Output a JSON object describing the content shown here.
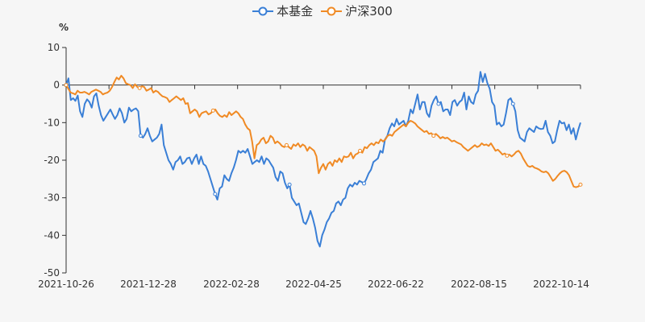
{
  "chart_data": {
    "type": "line",
    "ylabel": "%",
    "ylim": [
      -50,
      10
    ],
    "yticks": [
      10,
      0,
      -10,
      -20,
      -30,
      -40,
      -50
    ],
    "xticks": [
      "2021-10-26",
      "2021-12-28",
      "2022-02-28",
      "2022-04-25",
      "2022-06-22",
      "2022-08-15",
      "2022-10-14"
    ],
    "legend_position": "top-center",
    "grid": false,
    "series": [
      {
        "name": "本基金",
        "color": "#3a7fd6",
        "values": [
          0,
          1.8,
          -4,
          -3.5,
          -4.2,
          -2.8,
          -7,
          -8.5,
          -5,
          -3.8,
          -4.5,
          -6,
          -3,
          -2.2,
          -5.5,
          -8,
          -9.5,
          -8.5,
          -7.5,
          -6.5,
          -7.8,
          -9,
          -8,
          -6.2,
          -7.5,
          -10,
          -9,
          -6,
          -7,
          -6.5,
          -6.2,
          -7,
          -13.5,
          -14,
          -13,
          -11.5,
          -13.5,
          -15,
          -14.5,
          -14,
          -13,
          -10.5,
          -16,
          -18,
          -20,
          -21,
          -22.5,
          -20.5,
          -20,
          -19,
          -21,
          -20.5,
          -19.5,
          -19.3,
          -21,
          -19.5,
          -18.5,
          -21,
          -19,
          -21,
          -21.5,
          -23,
          -25,
          -27,
          -29,
          -30.5,
          -27.5,
          -27,
          -24,
          -25,
          -25.5,
          -23.5,
          -22,
          -20,
          -17.5,
          -18,
          -17.5,
          -18,
          -17,
          -19,
          -21,
          -20.5,
          -20,
          -20.5,
          -19,
          -21,
          -19.5,
          -20,
          -21,
          -22,
          -24.5,
          -25.5,
          -23,
          -23.5,
          -26,
          -27.5,
          -26.5,
          -30,
          -31,
          -32,
          -31.5,
          -34,
          -36.5,
          -37,
          -35.5,
          -33.5,
          -35.5,
          -38,
          -41.5,
          -43,
          -40,
          -38.5,
          -36.5,
          -35.5,
          -34,
          -33.5,
          -31.5,
          -31,
          -32,
          -30.5,
          -30,
          -27.5,
          -26.5,
          -27,
          -26,
          -26.5,
          -25.5,
          -25.8,
          -26.2,
          -25,
          -23.5,
          -22.5,
          -20.5,
          -20,
          -19.5,
          -17.5,
          -18,
          -14.5,
          -13.5,
          -11.5,
          -10.2,
          -11,
          -9,
          -10.5,
          -10,
          -9.5,
          -11,
          -9.5,
          -6.5,
          -7.5,
          -5,
          -2.5,
          -6.5,
          -4.5,
          -4.5,
          -7.5,
          -8.5,
          -5.5,
          -4,
          -3,
          -5,
          -4.5,
          -7,
          -6.5,
          -6.5,
          -8,
          -4.5,
          -4,
          -5.5,
          -4.5,
          -4,
          -2,
          -6.5,
          -3,
          -4.5,
          -5,
          -2.5,
          -1.5,
          3.5,
          0.8,
          3,
          0.5,
          -1,
          -4.5,
          -5.5,
          -10.5,
          -10,
          -11,
          -10.5,
          -7.5,
          -4,
          -3.5,
          -5,
          -7,
          -12,
          -14,
          -14.5,
          -15,
          -12.5,
          -11.5,
          -12,
          -12.5,
          -11,
          -11.5,
          -11.7,
          -11.6,
          -9.5,
          -12.5,
          -13.5,
          -15.5,
          -15,
          -12,
          -9.5,
          -10.2,
          -10,
          -12,
          -10.5,
          -13,
          -11.5,
          -14.5,
          -12,
          -10
        ]
      },
      {
        "name": "沪深300",
        "color": "#f08a24",
        "values": [
          0,
          -1,
          -2,
          -2.2,
          -2.5,
          -1.5,
          -2,
          -2,
          -1.8,
          -2.1,
          -2.5,
          -1.8,
          -1.5,
          -1.2,
          -1.5,
          -1.8,
          -2.5,
          -2.2,
          -2,
          -1.5,
          -0.5,
          0.8,
          2,
          1.5,
          2.5,
          1.8,
          0.5,
          0.2,
          0,
          -0.8,
          0.2,
          -0.5,
          -0.8,
          -0.3,
          -0.5,
          -1.5,
          -1.2,
          -0.8,
          -2,
          -1.5,
          -1.8,
          -2.5,
          -3,
          -3.2,
          -3.5,
          -4.5,
          -4,
          -3.5,
          -3,
          -3.5,
          -4,
          -3.5,
          -5,
          -4.8,
          -7.5,
          -7,
          -6.5,
          -7,
          -8.5,
          -7.5,
          -7.2,
          -7,
          -7.8,
          -7.5,
          -6.8,
          -6.5,
          -7.5,
          -8.2,
          -8.5,
          -8,
          -8.5,
          -7.2,
          -8,
          -7.5,
          -7,
          -7.5,
          -8.5,
          -9,
          -10.5,
          -11.5,
          -12,
          -15,
          -19.5,
          -16,
          -15.5,
          -14.5,
          -14,
          -15.5,
          -15,
          -13.5,
          -14,
          -15.5,
          -15,
          -15.5,
          -16.2,
          -16.5,
          -16,
          -16.5,
          -17,
          -15.8,
          -16.2,
          -15.5,
          -16.5,
          -15.8,
          -16.2,
          -17.5,
          -16.5,
          -17,
          -17.5,
          -19,
          -23.5,
          -22,
          -21,
          -22.5,
          -21,
          -20.5,
          -21.5,
          -20,
          -20.5,
          -19.5,
          -20.5,
          -19,
          -19.2,
          -19,
          -18,
          -19.5,
          -18.5,
          -18.2,
          -17.5,
          -18,
          -16.5,
          -16.8,
          -16,
          -15.5,
          -16,
          -15.2,
          -15.5,
          -14.5,
          -15,
          -14.5,
          -13.5,
          -13.2,
          -13.5,
          -12.5,
          -12,
          -11.5,
          -11,
          -10.5,
          -11,
          -10,
          -9.5,
          -9.8,
          -10.2,
          -11,
          -11.5,
          -12,
          -12.5,
          -12.2,
          -13,
          -12.8,
          -13.5,
          -13,
          -13.5,
          -14.2,
          -13.8,
          -14.2,
          -14,
          -14.5,
          -15,
          -14.8,
          -15.2,
          -15.5,
          -15.8,
          -16.5,
          -17,
          -17.5,
          -17,
          -16.5,
          -16,
          -16.5,
          -16.2,
          -15.5,
          -16,
          -15.8,
          -16.2,
          -15.5,
          -16.5,
          -17.5,
          -17.2,
          -17.8,
          -18.5,
          -18.2,
          -18.8,
          -18.5,
          -19,
          -18.5,
          -17.8,
          -17.5,
          -18.2,
          -19.5,
          -20.5,
          -21.5,
          -21.8,
          -21.5,
          -22,
          -22.2,
          -22.5,
          -23,
          -23.2,
          -23,
          -23.5,
          -24.5,
          -25.5,
          -25,
          -24.2,
          -23.5,
          -23,
          -22.8,
          -23.2,
          -24,
          -25.5,
          -27,
          -27.2,
          -27,
          -26.5
        ]
      }
    ]
  }
}
